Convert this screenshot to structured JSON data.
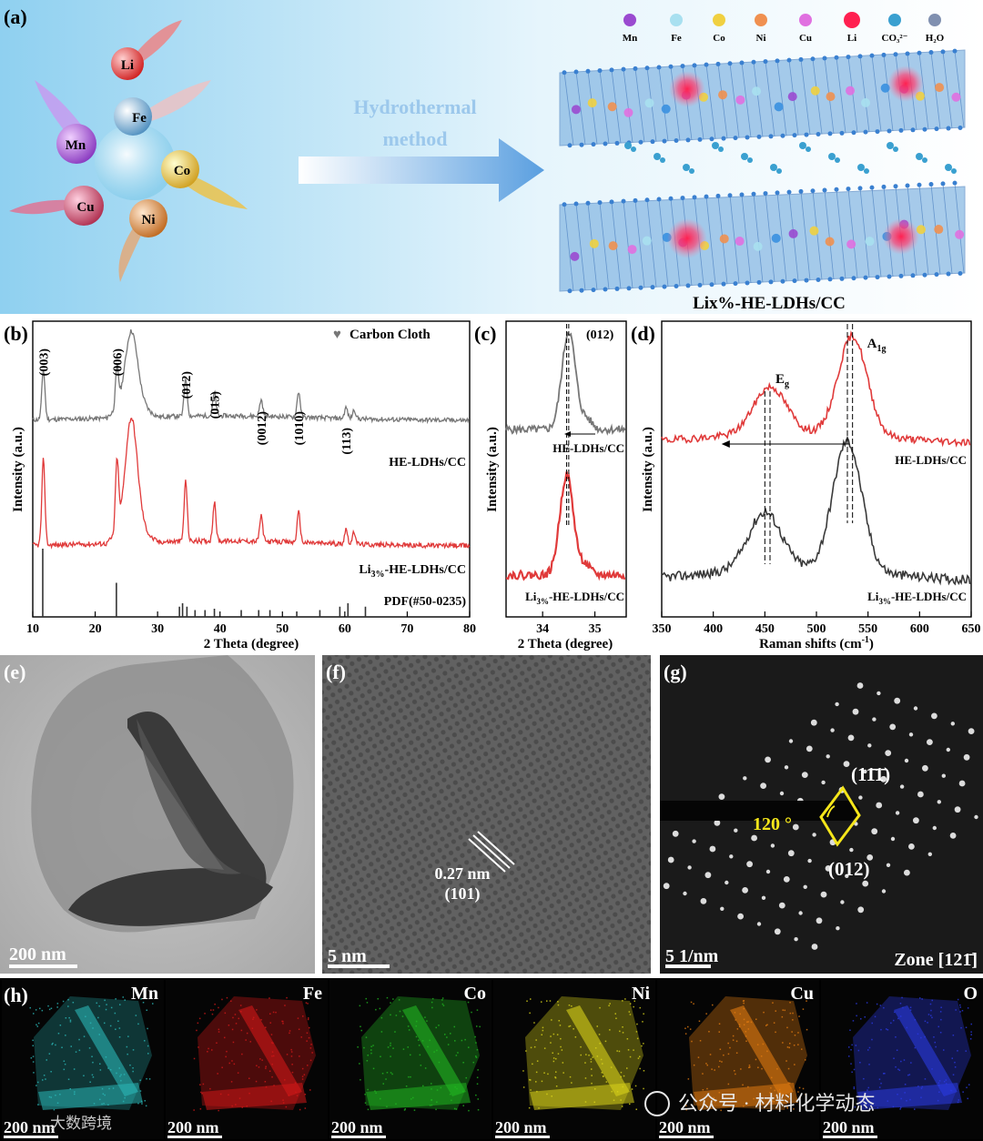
{
  "panel_labels": {
    "a": "(a)",
    "b": "(b)",
    "c": "(c)",
    "d": "(d)",
    "e": "(e)",
    "f": "(f)",
    "g": "(g)",
    "h": "(h)"
  },
  "panel_a": {
    "elements": [
      "Li",
      "Fe",
      "Mn",
      "Co",
      "Cu",
      "Ni"
    ],
    "arrow_text": [
      "Hydrothermal",
      "method"
    ],
    "legend": [
      "Mn",
      "Fe",
      "Co",
      "Ni",
      "Cu",
      "Li",
      "CO₃²⁻",
      "H₂O"
    ],
    "product_label": "Lix%-HE-LDHs/CC"
  },
  "colors": {
    "gray_curve": "#777777",
    "red_curve": "#e03a3a",
    "dark_curve": "#3a3a3a",
    "yellow": "#f5e61a",
    "mn": "#2ab7b7",
    "fe": "#d01818",
    "co": "#21b521",
    "ni": "#d8d21a",
    "cu": "#e07a10",
    "o": "#2a3ae0"
  },
  "chart_data": [
    {
      "type": "line",
      "title": "",
      "xlabel": "2 Theta (degree)",
      "ylabel": "Intensity (a.u.)",
      "xlim": [
        10,
        80
      ],
      "xticks": [
        "10",
        "20",
        "30",
        "40",
        "50",
        "60",
        "70",
        "80"
      ],
      "legend_marker": "Carbon Cloth",
      "peak_labels": [
        {
          "x": 11.7,
          "label": "(003)"
        },
        {
          "x": 23.5,
          "label": "(006)"
        },
        {
          "x": 34.5,
          "label": "(012)"
        },
        {
          "x": 39.1,
          "label": "(015)"
        },
        {
          "x": 46.6,
          "label": "(0012)"
        },
        {
          "x": 52.6,
          "label": "(1010)"
        },
        {
          "x": 60.2,
          "label": "(113)"
        }
      ],
      "series": [
        {
          "name": "HE-LDHs/CC",
          "color": "#777777",
          "peaks": [
            [
              11.7,
              0.55
            ],
            [
              23.5,
              0.42
            ],
            [
              25.8,
              0.6
            ],
            [
              34.5,
              0.42
            ],
            [
              39.1,
              0.25
            ],
            [
              46.6,
              0.18
            ],
            [
              52.6,
              0.28
            ],
            [
              60.2,
              0.12
            ],
            [
              61.5,
              0.1
            ]
          ]
        },
        {
          "name": "Li3%-HE-LDHs/CC",
          "name_parts": [
            "Li",
            "3%",
            "-HE-LDHs/CC"
          ],
          "color": "#e03a3a",
          "peaks": [
            [
              11.7,
              0.85
            ],
            [
              23.5,
              0.7
            ],
            [
              25.8,
              0.9
            ],
            [
              34.5,
              0.6
            ],
            [
              39.1,
              0.38
            ],
            [
              46.6,
              0.25
            ],
            [
              52.6,
              0.3
            ],
            [
              60.2,
              0.15
            ],
            [
              61.5,
              0.12
            ]
          ]
        }
      ],
      "reference": {
        "name": "PDF(#50-0235)",
        "lines": [
          [
            11.6,
            1.0
          ],
          [
            23.4,
            0.5
          ],
          [
            33.5,
            0.15
          ],
          [
            34.0,
            0.2
          ],
          [
            34.7,
            0.15
          ],
          [
            36.0,
            0.1
          ],
          [
            37.6,
            0.1
          ],
          [
            39.1,
            0.12
          ],
          [
            43.4,
            0.1
          ],
          [
            46.2,
            0.1
          ],
          [
            48.0,
            0.1
          ],
          [
            52.3,
            0.08
          ],
          [
            56.0,
            0.1
          ],
          [
            59.2,
            0.15
          ],
          [
            60.5,
            0.2
          ],
          [
            63.3,
            0.15
          ]
        ]
      }
    },
    {
      "type": "line",
      "xlabel": "2 Theta (degree)",
      "ylabel": "Intensity (a.u.)",
      "xlim": [
        33.3,
        35.6
      ],
      "xticks": [
        "34",
        "35"
      ],
      "annotation": "(012)",
      "series": [
        {
          "name": "HE-LDHs/CC",
          "color": "#777777",
          "peak": 34.5
        },
        {
          "name": "Li3%-HE-LDHs/CC",
          "name_parts": [
            "Li",
            "3%",
            "-HE-LDHs/CC"
          ],
          "color": "#e03a3a",
          "peak": 34.46
        }
      ]
    },
    {
      "type": "line",
      "xlabel": "Raman shifts (cm",
      "xlabel_sup": "-1",
      "xlabel_end": ")",
      "ylabel": "Intensity (a.u.)",
      "xlim": [
        350,
        650
      ],
      "xticks": [
        "350",
        "400",
        "450",
        "500",
        "550",
        "600",
        "650"
      ],
      "band_labels": [
        {
          "base": "E",
          "sub": "g",
          "x": 455
        },
        {
          "base": "A",
          "sub": "1g",
          "x": 535
        }
      ],
      "series": [
        {
          "name": "HE-LDHs/CC",
          "color": "#e03a3a",
          "peaks": [
            [
              455,
              0.45
            ],
            [
              535,
              0.95
            ]
          ]
        },
        {
          "name": "Li3%-HE-LDHs/CC",
          "name_parts": [
            "Li",
            "3%",
            "-HE-LDHs/CC"
          ],
          "color": "#3a3a3a",
          "peaks": [
            [
              450,
              0.42
            ],
            [
              530,
              0.95
            ]
          ]
        }
      ]
    }
  ],
  "panel_e": {
    "scale": "200 nm"
  },
  "panel_f": {
    "scale": "5 nm",
    "spacing": "0.27 nm",
    "plane": "(101)"
  },
  "panel_g": {
    "scale": "5 1/nm",
    "zone": "Zone [121̄]",
    "angle": "120 °",
    "plane1": "(11̄1̄)",
    "plane2": "(012)"
  },
  "panel_h": {
    "maps": [
      {
        "element": "Mn",
        "scale": "200 nm"
      },
      {
        "element": "Fe",
        "scale": "200 nm"
      },
      {
        "element": "Co",
        "scale": "200 nm"
      },
      {
        "element": "Ni",
        "scale": "200 nm"
      },
      {
        "element": "Cu",
        "scale": "200 nm"
      },
      {
        "element": "O",
        "scale": "200 nm"
      }
    ],
    "watermark": "公众号 · 材料化学动态",
    "watermark2": "大数跨境"
  }
}
